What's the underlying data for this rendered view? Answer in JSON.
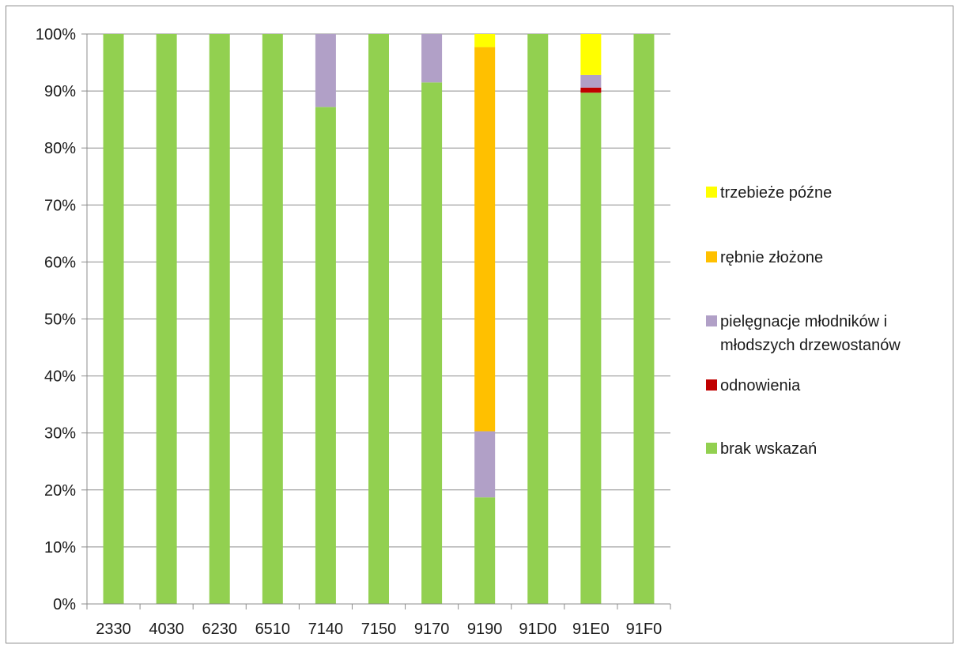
{
  "chart_data": {
    "type": "bar",
    "stacked": true,
    "percent": true,
    "categories": [
      "2330",
      "4030",
      "6230",
      "6510",
      "7140",
      "7150",
      "9170",
      "9190",
      "91D0",
      "91E0",
      "91F0"
    ],
    "series": [
      {
        "name": "brak wskazań",
        "color": "#92D050",
        "values": [
          100,
          100,
          100,
          100,
          87.2,
          100,
          91.5,
          18.7,
          100,
          89.7,
          100
        ]
      },
      {
        "name": "odnowienia",
        "color": "#C00000",
        "values": [
          0,
          0,
          0,
          0,
          0,
          0,
          0,
          0,
          0,
          0.9,
          0
        ]
      },
      {
        "name": "pielęgnacje młodników i młodszych drzewostanów",
        "color": "#B1A0C7",
        "values": [
          0,
          0,
          0,
          0,
          12.8,
          0,
          8.5,
          11.6,
          0,
          2.2,
          0
        ]
      },
      {
        "name": "rębnie złożone",
        "color": "#FFC000",
        "values": [
          0,
          0,
          0,
          0,
          0,
          0,
          0,
          67.4,
          0,
          0,
          0
        ]
      },
      {
        "name": "trzebieże późne",
        "color": "#FFFF00",
        "values": [
          0,
          0,
          0,
          0,
          0,
          0,
          0,
          2.3,
          0,
          7.2,
          0
        ]
      }
    ],
    "y_ticks": [
      "0%",
      "10%",
      "20%",
      "30%",
      "40%",
      "50%",
      "60%",
      "70%",
      "80%",
      "90%",
      "100%"
    ],
    "ylim": [
      0,
      100
    ],
    "grid": true,
    "legend_position": "right",
    "legend_entries": [
      {
        "lines": [
          "trzebieże późne"
        ],
        "color": "#FFFF00"
      },
      {
        "lines": [
          "rębnie złożone"
        ],
        "color": "#FFC000"
      },
      {
        "lines": [
          "pielęgnacje młodników i",
          "młodszych drzewostanów"
        ],
        "color": "#B1A0C7"
      },
      {
        "lines": [
          "odnowienia"
        ],
        "color": "#C00000"
      },
      {
        "lines": [
          "brak wskazań"
        ],
        "color": "#92D050"
      }
    ],
    "title": "",
    "xlabel": "",
    "ylabel": ""
  }
}
